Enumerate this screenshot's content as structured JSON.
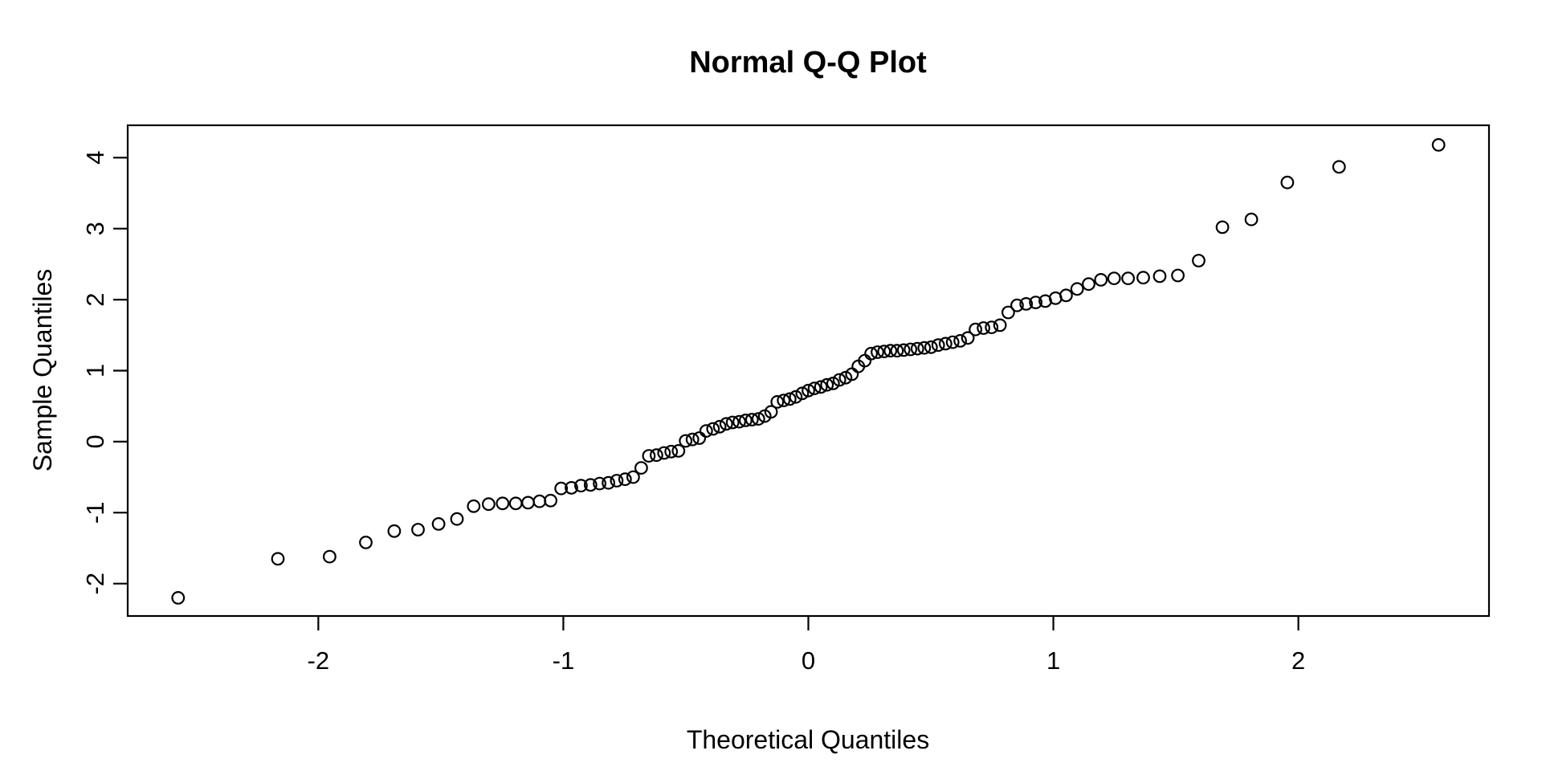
{
  "chart_data": {
    "type": "scatter",
    "title": "Normal Q-Q Plot",
    "xlabel": "Theoretical Quantiles",
    "ylabel": "Sample Quantiles",
    "legend": "none",
    "grid": false,
    "marker": {
      "shape": "open-circle",
      "color": "#000000",
      "fill": "none"
    },
    "colors": {
      "background": "#ffffff",
      "foreground": "#000000"
    },
    "xlim": [
      -2.778,
      2.778
    ],
    "ylim": [
      -2.456,
      4.456
    ],
    "xticks": [
      -2,
      -1,
      0,
      1,
      2
    ],
    "yticks": [
      -2,
      -1,
      0,
      1,
      2,
      3,
      4
    ],
    "n_points": 99,
    "x": [
      -2.572,
      -2.165,
      -1.954,
      -1.806,
      -1.69,
      -1.593,
      -1.509,
      -1.434,
      -1.366,
      -1.305,
      -1.248,
      -1.194,
      -1.144,
      -1.097,
      -1.052,
      -1.009,
      -0.967,
      -0.928,
      -0.889,
      -0.852,
      -0.816,
      -0.782,
      -0.748,
      -0.715,
      -0.682,
      -0.651,
      -0.62,
      -0.589,
      -0.56,
      -0.53,
      -0.501,
      -0.473,
      -0.445,
      -0.417,
      -0.389,
      -0.362,
      -0.335,
      -0.309,
      -0.282,
      -0.256,
      -0.23,
      -0.204,
      -0.178,
      -0.152,
      -0.127,
      -0.101,
      -0.076,
      -0.051,
      -0.025,
      0.0,
      0.025,
      0.051,
      0.076,
      0.101,
      0.127,
      0.152,
      0.178,
      0.204,
      0.23,
      0.256,
      0.282,
      0.309,
      0.335,
      0.362,
      0.389,
      0.417,
      0.445,
      0.473,
      0.501,
      0.53,
      0.56,
      0.589,
      0.62,
      0.651,
      0.682,
      0.715,
      0.748,
      0.782,
      0.816,
      0.852,
      0.889,
      0.928,
      0.967,
      1.009,
      1.052,
      1.097,
      1.144,
      1.194,
      1.248,
      1.305,
      1.367,
      1.434,
      1.508,
      1.593,
      1.69,
      1.808,
      1.955,
      2.166,
      2.572
    ],
    "y": [
      -2.2,
      -1.65,
      -1.62,
      -1.42,
      -1.26,
      -1.24,
      -1.16,
      -1.09,
      -0.91,
      -0.88,
      -0.87,
      -0.87,
      -0.86,
      -0.84,
      -0.83,
      -0.66,
      -0.65,
      -0.62,
      -0.61,
      -0.59,
      -0.58,
      -0.55,
      -0.53,
      -0.5,
      -0.37,
      -0.2,
      -0.19,
      -0.16,
      -0.14,
      -0.13,
      0.01,
      0.03,
      0.05,
      0.15,
      0.18,
      0.21,
      0.25,
      0.27,
      0.28,
      0.3,
      0.31,
      0.32,
      0.36,
      0.42,
      0.56,
      0.58,
      0.6,
      0.63,
      0.68,
      0.72,
      0.75,
      0.77,
      0.8,
      0.82,
      0.87,
      0.9,
      0.95,
      1.06,
      1.14,
      1.24,
      1.26,
      1.27,
      1.28,
      1.28,
      1.29,
      1.3,
      1.31,
      1.32,
      1.33,
      1.36,
      1.38,
      1.4,
      1.42,
      1.46,
      1.58,
      1.6,
      1.61,
      1.64,
      1.82,
      1.92,
      1.94,
      1.96,
      1.98,
      2.02,
      2.06,
      2.15,
      2.22,
      2.28,
      2.3,
      2.3,
      2.31,
      2.33,
      2.34,
      2.55,
      3.02,
      3.13,
      3.65,
      3.87,
      4.18
    ]
  }
}
